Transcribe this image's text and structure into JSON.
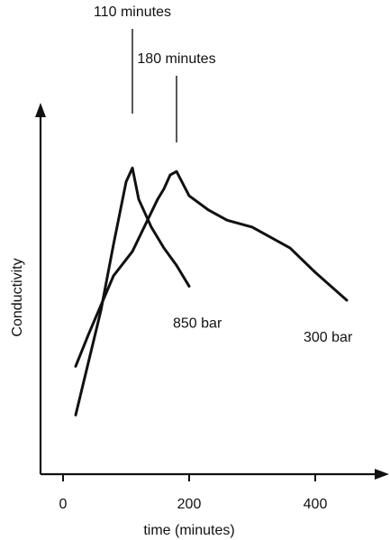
{
  "chart_data": {
    "type": "line",
    "xlabel": "time (minutes)",
    "ylabel": "Conductivity",
    "xlim": [
      -40,
      520
    ],
    "ylim": [
      0,
      1
    ],
    "x_ticks": [
      0,
      200,
      400
    ],
    "y_ticks_shown": false,
    "grid": false,
    "series": [
      {
        "name": "850 bar",
        "x": [
          20,
          60,
          80,
          100,
          110,
          120,
          140,
          160,
          180,
          200
        ],
        "y": [
          0.17,
          0.47,
          0.66,
          0.84,
          0.88,
          0.79,
          0.71,
          0.65,
          0.6,
          0.54
        ]
      },
      {
        "name": "300 bar",
        "x": [
          20,
          40,
          80,
          110,
          150,
          160,
          170,
          180,
          200,
          230,
          260,
          300,
          360,
          400,
          450
        ],
        "y": [
          0.31,
          0.4,
          0.57,
          0.64,
          0.79,
          0.82,
          0.86,
          0.87,
          0.8,
          0.76,
          0.73,
          0.71,
          0.65,
          0.58,
          0.5
        ]
      }
    ],
    "annotations": [
      {
        "text": "110 minutes",
        "x": 110
      },
      {
        "text": "180 minutes",
        "x": 180
      }
    ]
  }
}
